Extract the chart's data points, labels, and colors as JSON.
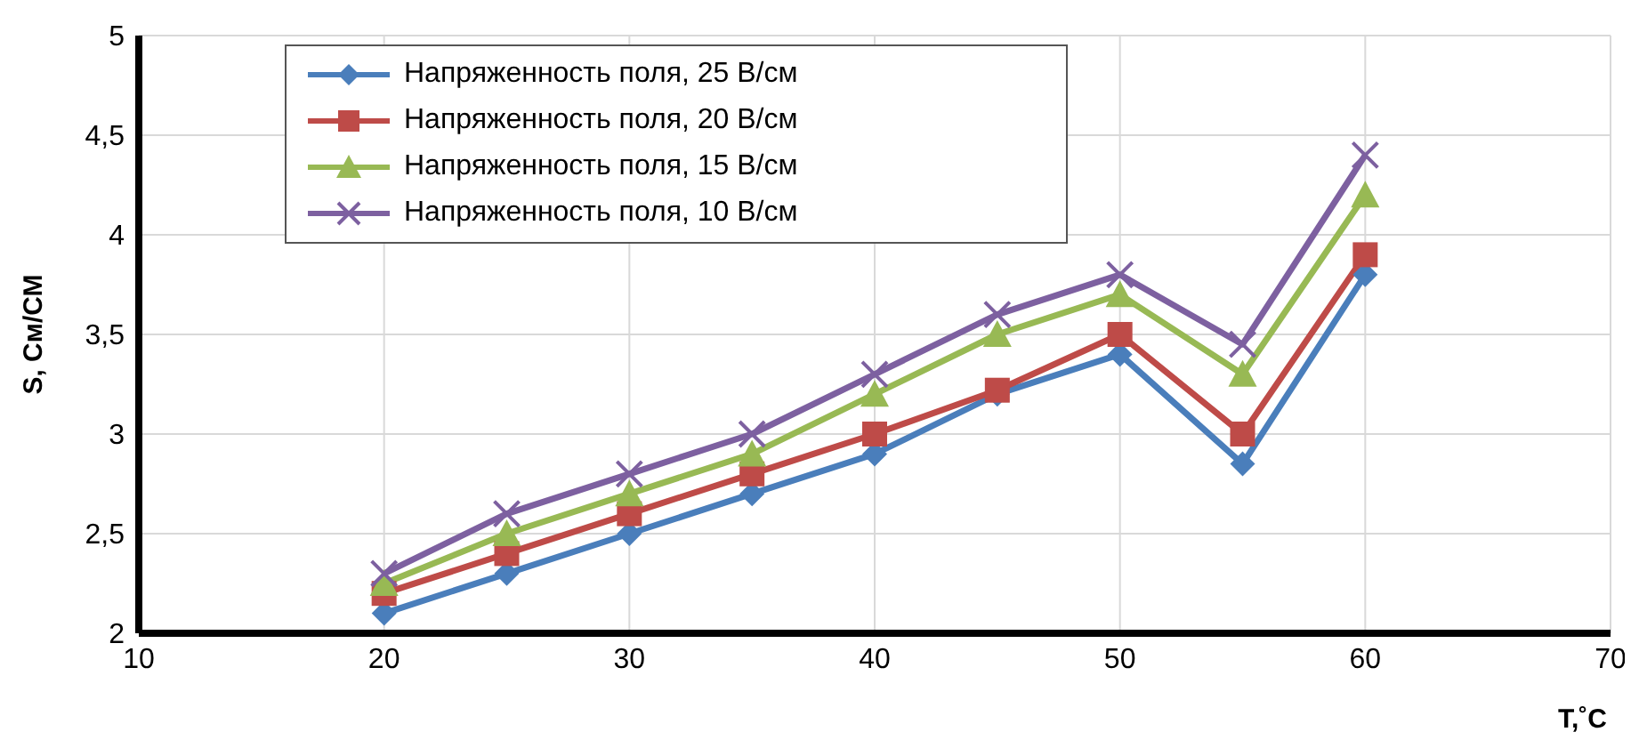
{
  "chart_data": {
    "type": "line",
    "xlabel": "T,˚C",
    "ylabel": "S, См/СМ",
    "x": [
      20,
      25,
      30,
      35,
      40,
      45,
      50,
      55,
      60
    ],
    "xlim": [
      10,
      70
    ],
    "xticks": [
      10,
      20,
      30,
      40,
      50,
      60,
      70
    ],
    "ylim": [
      2,
      5
    ],
    "yticks": [
      {
        "value": 2,
        "label": "2"
      },
      {
        "value": 2.5,
        "label": "2,5"
      },
      {
        "value": 3,
        "label": "3"
      },
      {
        "value": 3.5,
        "label": "3,5"
      },
      {
        "value": 4,
        "label": "4"
      },
      {
        "value": 4.5,
        "label": "4,5"
      },
      {
        "value": 5,
        "label": "5"
      }
    ],
    "grid": true,
    "legend": "top left",
    "line_style": "solid",
    "series": [
      {
        "name": "Напряженность поля, 25 В/см",
        "color": "#4a7ebb",
        "marker": "diamond",
        "values": [
          2.1,
          2.3,
          2.5,
          2.7,
          2.9,
          3.2,
          3.4,
          2.85,
          3.8
        ]
      },
      {
        "name": "Напряженность поля, 20 В/см",
        "color": "#be4b48",
        "marker": "square",
        "values": [
          2.2,
          2.4,
          2.6,
          2.8,
          3.0,
          3.22,
          3.5,
          3.0,
          3.9
        ]
      },
      {
        "name": "Напряженность поля, 15 В/см",
        "color": "#98b954",
        "marker": "triangle",
        "values": [
          2.25,
          2.5,
          2.7,
          2.9,
          3.2,
          3.5,
          3.7,
          3.3,
          4.2
        ]
      },
      {
        "name": "Напряженность поля, 10 В/см",
        "color": "#7d60a0",
        "marker": "cross",
        "values": [
          2.3,
          2.6,
          2.8,
          3.0,
          3.3,
          3.6,
          3.8,
          3.45,
          4.4
        ]
      }
    ]
  }
}
